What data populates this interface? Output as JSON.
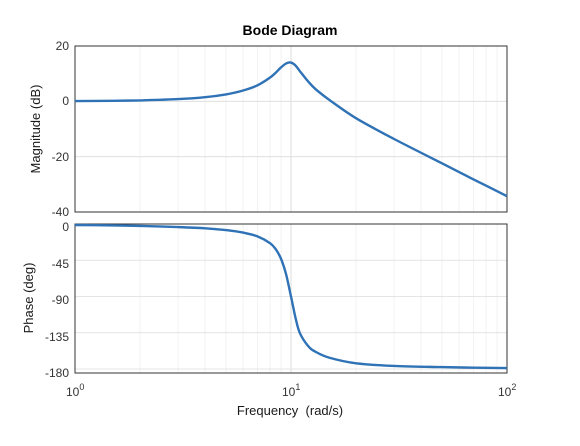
{
  "chart_data": [
    {
      "type": "line",
      "title": "Bode Diagram",
      "xlabel": "",
      "ylabel": "Magnitude (dB)",
      "xscale": "log",
      "xlim": [
        1,
        100
      ],
      "ylim": [
        -40,
        20
      ],
      "yticks": [
        "20",
        "0",
        "-20",
        "-40"
      ],
      "grid": true,
      "color": "#2f72b6",
      "series": [
        {
          "x": [
            1,
            1.5,
            2,
            3,
            4,
            5,
            6,
            7,
            8,
            8.5,
            9,
            9.5,
            10,
            10.5,
            11,
            12,
            13,
            15,
            20,
            30,
            50,
            70,
            100
          ],
          "y": [
            0.1,
            0.2,
            0.35,
            0.8,
            1.5,
            2.5,
            3.9,
            5.8,
            8.6,
            10.4,
            12.3,
            13.7,
            14.0,
            12.9,
            10.9,
            7.2,
            4.4,
            0.6,
            -6.1,
            -13.6,
            -22.4,
            -28.2,
            -34.3
          ]
        }
      ]
    },
    {
      "type": "line",
      "title": "",
      "xlabel": "Frequency  (rad/s)",
      "ylabel": "Phase (deg)",
      "xscale": "log",
      "xlim": [
        1,
        100
      ],
      "ylim": [
        -185,
        0
      ],
      "yticks": [
        "0",
        "-45",
        "-90",
        "-135",
        "-180"
      ],
      "xticks": [
        {
          "base": "10",
          "exp": "0"
        },
        {
          "base": "10",
          "exp": "1"
        },
        {
          "base": "10",
          "exp": "2"
        }
      ],
      "grid": true,
      "color": "#2f72b6",
      "series": [
        {
          "x": [
            1,
            1.5,
            2,
            3,
            4,
            5,
            6,
            7,
            8,
            8.5,
            9,
            9.5,
            10,
            10.5,
            11,
            12,
            13,
            15,
            20,
            30,
            50,
            70,
            100
          ],
          "y": [
            -1.2,
            -1.8,
            -2.4,
            -3.8,
            -5.4,
            -7.6,
            -10.7,
            -15.4,
            -23.9,
            -31.4,
            -43.5,
            -62.9,
            -90,
            -117.0,
            -135.6,
            -151.5,
            -158.7,
            -165.9,
            -172.9,
            -176.2,
            -177.7,
            -178.4,
            -178.9
          ]
        }
      ]
    }
  ]
}
